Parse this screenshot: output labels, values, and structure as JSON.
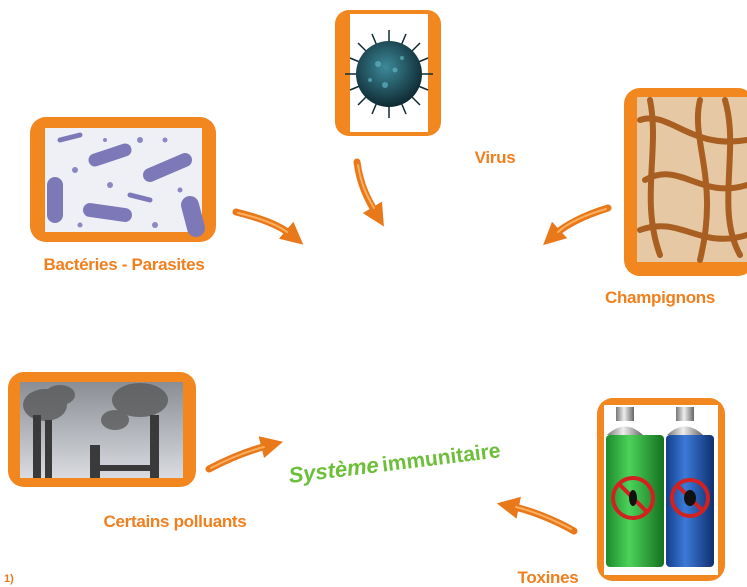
{
  "nodes": [
    {
      "label": "Virus"
    },
    {
      "label": "Bactéries - Parasites"
    },
    {
      "label": "Champignons"
    },
    {
      "label": "Certains polluants"
    },
    {
      "label": "Toxines"
    }
  ],
  "center": {
    "parts": [
      "Système",
      "immunitaire"
    ]
  },
  "footnote": "1)"
}
